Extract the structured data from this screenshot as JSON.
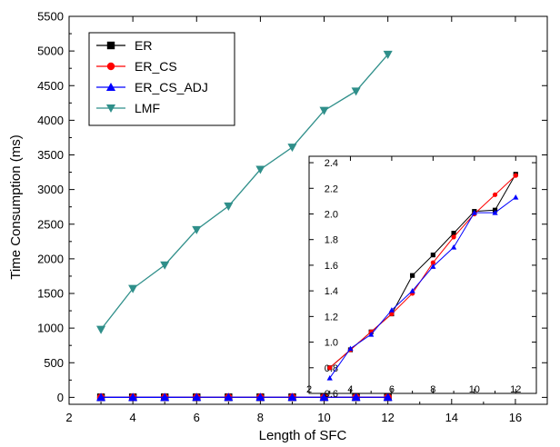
{
  "chart_data": [
    {
      "type": "line",
      "xlabel": "Length of SFC",
      "ylabel": "Time Consumption (ms)",
      "xlim": [
        2,
        17
      ],
      "ylim": [
        -100,
        5500
      ],
      "xticks": [
        2,
        4,
        6,
        8,
        10,
        12,
        14,
        16
      ],
      "yticks": [
        0,
        500,
        1000,
        1500,
        2000,
        2500,
        3000,
        3500,
        4000,
        4500,
        5000,
        5500
      ],
      "legend_position": "top-left",
      "x": [
        3,
        4,
        5,
        6,
        7,
        8,
        9,
        10,
        11,
        12
      ],
      "series": [
        {
          "name": "ER",
          "color": "#000000",
          "marker": "square",
          "values": [
            0.8,
            0.94,
            1.08,
            1.22,
            1.52,
            1.68,
            1.85,
            2.02,
            2.03,
            2.31
          ]
        },
        {
          "name": "ER_CS",
          "color": "#ff0000",
          "marker": "circle",
          "values": [
            0.8,
            0.94,
            1.08,
            1.22,
            1.38,
            1.62,
            1.82,
            2.0,
            2.15,
            2.3
          ]
        },
        {
          "name": "ER_CS_ADJ",
          "color": "#0000ff",
          "marker": "triangle-up",
          "values": [
            0.72,
            0.95,
            1.06,
            1.25,
            1.4,
            1.59,
            1.74,
            2.01,
            2.01,
            2.13
          ]
        },
        {
          "name": "LMF",
          "color": "#2f8f8a",
          "marker": "triangle-down",
          "values": [
            980,
            1570,
            1910,
            2420,
            2760,
            3290,
            3610,
            4140,
            4420,
            4950
          ]
        }
      ]
    },
    {
      "type": "line",
      "inset": true,
      "xlim": [
        2,
        13
      ],
      "ylim": [
        0.6,
        2.45
      ],
      "xticks": [
        2,
        4,
        6,
        8,
        10,
        12
      ],
      "yticks": [
        0.6,
        0.8,
        1.0,
        1.2,
        1.4,
        1.6,
        1.8,
        2.0,
        2.2,
        2.4
      ],
      "ytick_labels": [
        "0.6",
        "0.8",
        "1.0",
        "1.2",
        "1.4",
        "1.6",
        "1.8",
        "2.0",
        "2.2",
        "2.4"
      ],
      "x": [
        3,
        4,
        5,
        6,
        7,
        8,
        9,
        10,
        11,
        12
      ],
      "series": [
        {
          "name": "ER",
          "color": "#000000",
          "marker": "square",
          "values": [
            0.8,
            0.94,
            1.08,
            1.22,
            1.52,
            1.68,
            1.85,
            2.02,
            2.03,
            2.31
          ]
        },
        {
          "name": "ER_CS",
          "color": "#ff0000",
          "marker": "circle",
          "values": [
            0.8,
            0.94,
            1.08,
            1.22,
            1.38,
            1.62,
            1.82,
            2.0,
            2.15,
            2.3
          ]
        },
        {
          "name": "ER_CS_ADJ",
          "color": "#0000ff",
          "marker": "triangle-up",
          "values": [
            0.72,
            0.95,
            1.06,
            1.25,
            1.4,
            1.59,
            1.74,
            2.01,
            2.01,
            2.13
          ]
        }
      ]
    }
  ]
}
